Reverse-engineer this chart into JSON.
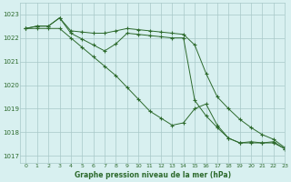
{
  "title": "Graphe pression niveau de la mer (hPa)",
  "bg_color": "#d8f0f0",
  "grid_color": "#a8c8c8",
  "line_color": "#2d6a2d",
  "xlim": [
    -0.5,
    23
  ],
  "ylim": [
    1016.7,
    1023.5
  ],
  "yticks": [
    1017,
    1018,
    1019,
    1020,
    1021,
    1022,
    1023
  ],
  "xticks": [
    0,
    1,
    2,
    3,
    4,
    5,
    6,
    7,
    8,
    9,
    10,
    11,
    12,
    13,
    14,
    15,
    16,
    17,
    18,
    19,
    20,
    21,
    22,
    23
  ],
  "series1_x": [
    0,
    1,
    2,
    3,
    4,
    5,
    6,
    7,
    8,
    9,
    10,
    11,
    12,
    13,
    14,
    15,
    16,
    17,
    18,
    19,
    20,
    21,
    22,
    23
  ],
  "series1_y": [
    1022.4,
    1022.5,
    1022.5,
    1022.85,
    1022.3,
    1022.25,
    1022.2,
    1022.2,
    1022.3,
    1022.4,
    1022.35,
    1022.3,
    1022.25,
    1022.2,
    1022.15,
    1021.7,
    1020.5,
    1019.5,
    1019.0,
    1018.55,
    1018.2,
    1017.9,
    1017.7,
    1017.35
  ],
  "series2_x": [
    0,
    1,
    2,
    3,
    4,
    5,
    6,
    7,
    8,
    9,
    10,
    11,
    12,
    13,
    14,
    15,
    16,
    17,
    18,
    19,
    20,
    21,
    22,
    23
  ],
  "series2_y": [
    1022.4,
    1022.5,
    1022.5,
    1022.85,
    1022.2,
    1021.95,
    1021.7,
    1021.45,
    1021.75,
    1022.2,
    1022.15,
    1022.1,
    1022.05,
    1022.0,
    1022.0,
    1019.35,
    1018.7,
    1018.2,
    1017.75,
    1017.55,
    1017.6,
    1017.55,
    1017.6,
    1017.3
  ],
  "series3_x": [
    0,
    1,
    2,
    3,
    4,
    5,
    6,
    7,
    8,
    9,
    10,
    11,
    12,
    13,
    14,
    15,
    16,
    17,
    18,
    19,
    20,
    21,
    22,
    23
  ],
  "series3_y": [
    1022.4,
    1022.4,
    1022.4,
    1022.4,
    1022.0,
    1021.6,
    1021.2,
    1020.8,
    1020.4,
    1019.9,
    1019.4,
    1018.9,
    1018.6,
    1018.3,
    1018.4,
    1019.0,
    1019.2,
    1018.3,
    1017.75,
    1017.55,
    1017.55,
    1017.55,
    1017.55,
    1017.3
  ]
}
